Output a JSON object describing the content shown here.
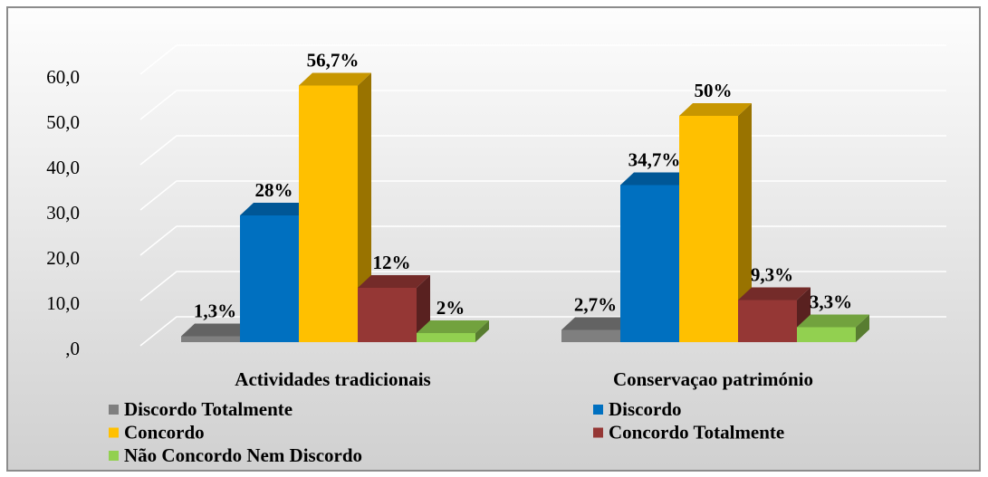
{
  "chart_data": {
    "type": "bar3d",
    "categories": [
      "Actividades tradicionais",
      "Conservaçao património"
    ],
    "series": [
      {
        "name": "Discordo Totalmente",
        "color": "#7f7f7f",
        "values": [
          1.3,
          2.7
        ],
        "value_labels": [
          "1,3%",
          "2,7%"
        ]
      },
      {
        "name": "Discordo",
        "color": "#0070c0",
        "values": [
          28,
          34.7
        ],
        "value_labels": [
          "28%",
          "34,7%"
        ]
      },
      {
        "name": "Concordo",
        "color": "#ffc000",
        "values": [
          56.7,
          50
        ],
        "value_labels": [
          "56,7%",
          "50%"
        ]
      },
      {
        "name": "Concordo Totalmente",
        "color": "#953735",
        "values": [
          12,
          9.3
        ],
        "value_labels": [
          "12%",
          "9,3%"
        ]
      },
      {
        "name": "Não Concordo Nem Discordo",
        "color": "#92d050",
        "values": [
          2,
          3.3
        ],
        "value_labels": [
          "2%",
          "3,3%"
        ]
      }
    ],
    "ylim": [
      0,
      60
    ],
    "yticks": [
      {
        "value": 0,
        "label": ",0"
      },
      {
        "value": 10,
        "label": "10,0"
      },
      {
        "value": 20,
        "label": "20,0"
      },
      {
        "value": 30,
        "label": "30,0"
      },
      {
        "value": 40,
        "label": "40,0"
      },
      {
        "value": 50,
        "label": "50,0"
      },
      {
        "value": 60,
        "label": "60,0"
      }
    ],
    "grid": true
  }
}
